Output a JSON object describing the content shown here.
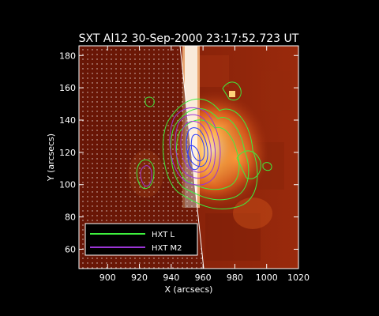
{
  "title": "SXT Al12 30-Sep-2000 23:17:52.723 UT",
  "x_axis": {
    "label": "X (arcsecs)",
    "range": [
      882,
      1020
    ],
    "ticks": [
      900,
      920,
      940,
      960,
      980,
      1000,
      1020
    ]
  },
  "y_axis": {
    "label": "Y (arcsecs)",
    "range": [
      48,
      186
    ],
    "ticks": [
      60,
      80,
      100,
      120,
      140,
      160,
      180
    ]
  },
  "legend": {
    "placement": "bottom-left",
    "items": [
      {
        "label": "HXT L",
        "color": "#3ef03e"
      },
      {
        "label": "HXT M2",
        "color": "#9b35d6"
      }
    ]
  },
  "colors": {
    "background": "#000000",
    "frame": "#ffffff",
    "image_dark": "#6e1606",
    "image_mid": "#a3300f",
    "image_bright": "#ffe79a",
    "limb_dots": "#ffffff",
    "contour_low": "#3ef03e",
    "contour_high": "#9b35d6",
    "contour_core": "#2b3bff"
  }
}
